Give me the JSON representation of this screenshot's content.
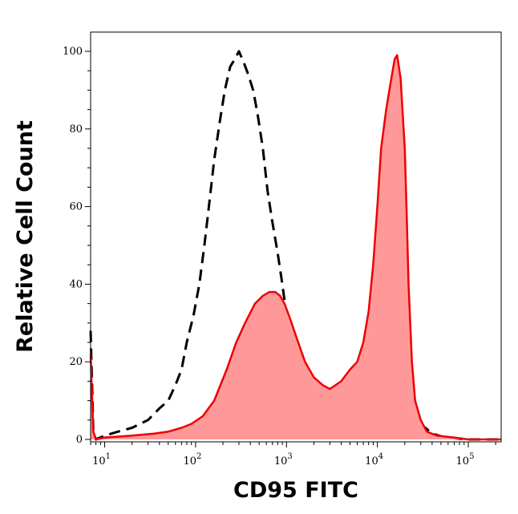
{
  "chart_data": {
    "type": "area",
    "xlabel": "CD95 FITC",
    "ylabel": "Relative Cell Count",
    "x_scale": "log",
    "xlim": [
      7,
      230000
    ],
    "ylim": [
      0,
      100
    ],
    "y_ticks": [
      {
        "value": 0,
        "label": "0"
      },
      {
        "value": 20,
        "label": "20"
      },
      {
        "value": 40,
        "label": "40"
      },
      {
        "value": 60,
        "label": "60"
      },
      {
        "value": 80,
        "label": "80"
      },
      {
        "value": 100,
        "label": "100"
      }
    ],
    "x_ticks": [
      {
        "value": 10,
        "base": "10",
        "exp": "1"
      },
      {
        "value": 100,
        "base": "10",
        "exp": "2"
      },
      {
        "value": 1000,
        "base": "10",
        "exp": "3"
      },
      {
        "value": 10000,
        "base": "10",
        "exp": "4"
      },
      {
        "value": 100000,
        "base": "10",
        "exp": "5"
      }
    ],
    "grid": false,
    "series": [
      {
        "style": "dashed",
        "color": "#000000",
        "points": [
          [
            7,
            28
          ],
          [
            7.5,
            2
          ],
          [
            8,
            0
          ],
          [
            10,
            1
          ],
          [
            14,
            2
          ],
          [
            20,
            3
          ],
          [
            30,
            5
          ],
          [
            40,
            8
          ],
          [
            50,
            10
          ],
          [
            60,
            14
          ],
          [
            70,
            18
          ],
          [
            80,
            25
          ],
          [
            95,
            32
          ],
          [
            110,
            40
          ],
          [
            125,
            50
          ],
          [
            140,
            60
          ],
          [
            160,
            72
          ],
          [
            185,
            82
          ],
          [
            210,
            90
          ],
          [
            240,
            96
          ],
          [
            270,
            98
          ],
          [
            300,
            100
          ],
          [
            340,
            97
          ],
          [
            380,
            94
          ],
          [
            430,
            90
          ],
          [
            480,
            84
          ],
          [
            550,
            75
          ],
          [
            620,
            64
          ],
          [
            700,
            56
          ],
          [
            800,
            48
          ],
          [
            900,
            40
          ],
          [
            1000,
            32
          ],
          [
            1150,
            24
          ],
          [
            1300,
            16
          ],
          [
            1500,
            11
          ],
          [
            1800,
            7
          ],
          [
            2200,
            5
          ],
          [
            2700,
            4
          ],
          [
            3500,
            5
          ],
          [
            5000,
            6
          ],
          [
            7000,
            8
          ],
          [
            9000,
            10
          ],
          [
            11000,
            11
          ],
          [
            13000,
            12
          ],
          [
            16000,
            12
          ],
          [
            20000,
            10
          ],
          [
            25000,
            7
          ],
          [
            30000,
            4
          ],
          [
            40000,
            1.5
          ],
          [
            55000,
            0.5
          ],
          [
            100000,
            0
          ],
          [
            230000,
            0
          ]
        ]
      },
      {
        "style": "filled",
        "color": "#ee0000",
        "fill": "#ff9999",
        "points": [
          [
            7,
            22
          ],
          [
            7.5,
            2
          ],
          [
            8,
            0
          ],
          [
            10,
            0.5
          ],
          [
            20,
            1
          ],
          [
            35,
            1.5
          ],
          [
            50,
            2
          ],
          [
            70,
            3
          ],
          [
            90,
            4
          ],
          [
            120,
            6
          ],
          [
            160,
            10
          ],
          [
            220,
            18
          ],
          [
            280,
            25
          ],
          [
            350,
            30
          ],
          [
            450,
            35
          ],
          [
            550,
            37
          ],
          [
            650,
            38
          ],
          [
            750,
            38
          ],
          [
            850,
            37
          ],
          [
            950,
            35
          ],
          [
            1100,
            31
          ],
          [
            1300,
            26
          ],
          [
            1600,
            20
          ],
          [
            2000,
            16
          ],
          [
            2500,
            14
          ],
          [
            3000,
            13
          ],
          [
            4000,
            15
          ],
          [
            5000,
            18
          ],
          [
            6000,
            20
          ],
          [
            7000,
            25
          ],
          [
            8000,
            33
          ],
          [
            9000,
            45
          ],
          [
            10000,
            60
          ],
          [
            11000,
            75
          ],
          [
            12500,
            85
          ],
          [
            14000,
            92
          ],
          [
            15500,
            98
          ],
          [
            16500,
            99
          ],
          [
            18000,
            93
          ],
          [
            20000,
            75
          ],
          [
            21000,
            58
          ],
          [
            22000,
            40
          ],
          [
            24000,
            20
          ],
          [
            26000,
            10
          ],
          [
            30000,
            5
          ],
          [
            35000,
            2
          ],
          [
            45000,
            1
          ],
          [
            70000,
            0.5
          ],
          [
            100000,
            0
          ],
          [
            230000,
            0
          ]
        ]
      }
    ]
  }
}
